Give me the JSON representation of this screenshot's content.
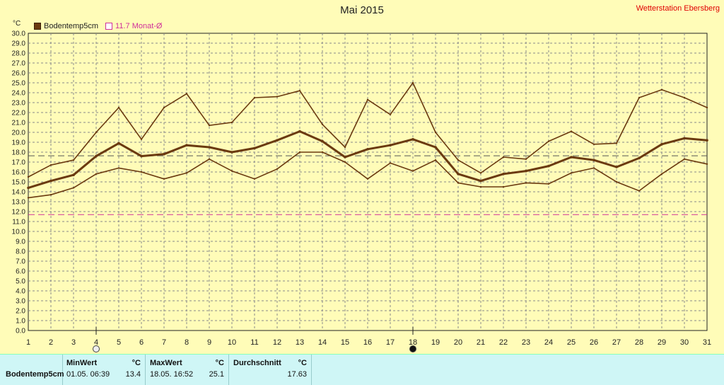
{
  "header": {
    "title": "Mai 2015",
    "station": "Wetterstation Ebersberg"
  },
  "legend": {
    "series_label": "Bodentemp5cm",
    "avg_label": "11.7 Monat-Ø"
  },
  "colors": {
    "series": "#6b3a10",
    "avg": "#d0309a",
    "ref": "#555555",
    "grid": "#8a8a8a",
    "bg": "#fffcb8"
  },
  "chart_data": {
    "type": "line",
    "title": "Mai 2015",
    "ylabel": "°C",
    "xlabel": "",
    "ylim": [
      0,
      30
    ],
    "y_tick_step": 1,
    "x": [
      1,
      2,
      3,
      4,
      5,
      6,
      7,
      8,
      9,
      10,
      11,
      12,
      13,
      14,
      15,
      16,
      17,
      18,
      19,
      20,
      21,
      22,
      23,
      24,
      25,
      26,
      27,
      28,
      29,
      30,
      31
    ],
    "series": [
      {
        "role": "max",
        "values": [
          15.5,
          16.7,
          17.2,
          20.0,
          22.5,
          19.3,
          22.5,
          23.9,
          20.7,
          21.0,
          23.5,
          23.6,
          24.2,
          20.8,
          18.5,
          23.3,
          21.8,
          25.0,
          20.0,
          17.2,
          15.9,
          17.5,
          17.3,
          19.1,
          20.1,
          18.8,
          18.9,
          23.5,
          24.3,
          23.5,
          22.5
        ]
      },
      {
        "role": "mean",
        "name": "Bodentemp5cm",
        "values": [
          14.4,
          15.1,
          15.7,
          17.6,
          18.9,
          17.6,
          17.8,
          18.7,
          18.5,
          18.0,
          18.4,
          19.2,
          20.1,
          19.1,
          17.5,
          18.3,
          18.7,
          19.3,
          18.5,
          15.8,
          15.1,
          15.8,
          16.1,
          16.6,
          17.5,
          17.2,
          16.5,
          17.4,
          18.8,
          19.4,
          19.2
        ]
      },
      {
        "role": "min",
        "values": [
          13.4,
          13.7,
          14.4,
          15.8,
          16.4,
          16.0,
          15.3,
          15.9,
          17.3,
          16.1,
          15.3,
          16.3,
          18.0,
          18.0,
          17.0,
          15.3,
          16.9,
          16.1,
          17.2,
          14.9,
          14.5,
          14.5,
          14.9,
          14.8,
          15.9,
          16.4,
          15.0,
          14.1,
          15.8,
          17.3,
          16.8
        ]
      }
    ],
    "reference_lines": [
      {
        "label": "11.7 Monat-Ø",
        "value": 11.7
      },
      {
        "value": 17.63
      }
    ],
    "markers": [
      {
        "x": 4,
        "style": "open"
      },
      {
        "x": 18,
        "style": "filled"
      }
    ],
    "grid": true,
    "legend_position": "top-left"
  },
  "stats": {
    "row_label": "Bodentemp5cm",
    "min": {
      "header": "MinWert",
      "unit": "°C",
      "time": "01.05. 06:39",
      "value": "13.4"
    },
    "max": {
      "header": "MaxWert",
      "unit": "°C",
      "time": "18.05. 16:52",
      "value": "25.1"
    },
    "avg": {
      "header": "Durchschnitt",
      "unit": "°C",
      "value": "17.63"
    }
  }
}
